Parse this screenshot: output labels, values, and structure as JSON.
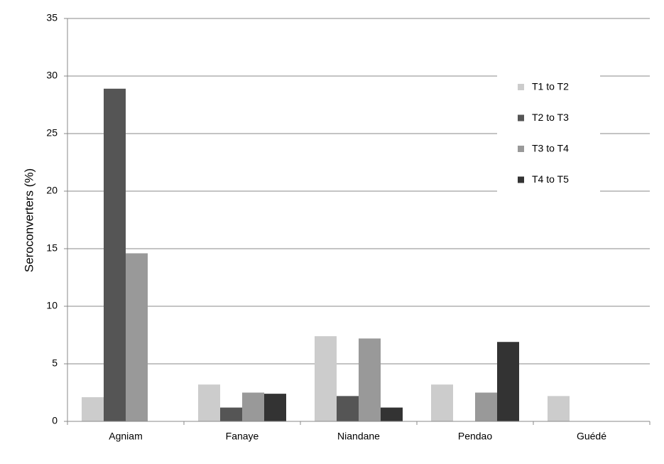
{
  "chart_data": {
    "type": "bar",
    "y_label": "Seroconverters (%)",
    "categories": [
      "Agniam",
      "Fanaye",
      "Niandane",
      "Pendao",
      "Guédé"
    ],
    "series": [
      {
        "name": "T1 to T2",
        "color": "#cccccc",
        "values": [
          2.1,
          3.2,
          7.4,
          3.2,
          2.2
        ]
      },
      {
        "name": "T2 to T3",
        "color": "#555555",
        "values": [
          28.9,
          1.2,
          2.2,
          0,
          0
        ]
      },
      {
        "name": "T3 to T4",
        "color": "#999999",
        "values": [
          14.6,
          2.5,
          7.2,
          2.5,
          0
        ]
      },
      {
        "name": "T4 to T5",
        "color": "#333333",
        "values": [
          0,
          2.4,
          1.2,
          6.9,
          0
        ]
      }
    ],
    "ylim": [
      0,
      35
    ],
    "yticks": [
      0,
      5,
      10,
      15,
      20,
      25,
      30,
      35
    ],
    "grid": true,
    "legend": "upper right"
  }
}
